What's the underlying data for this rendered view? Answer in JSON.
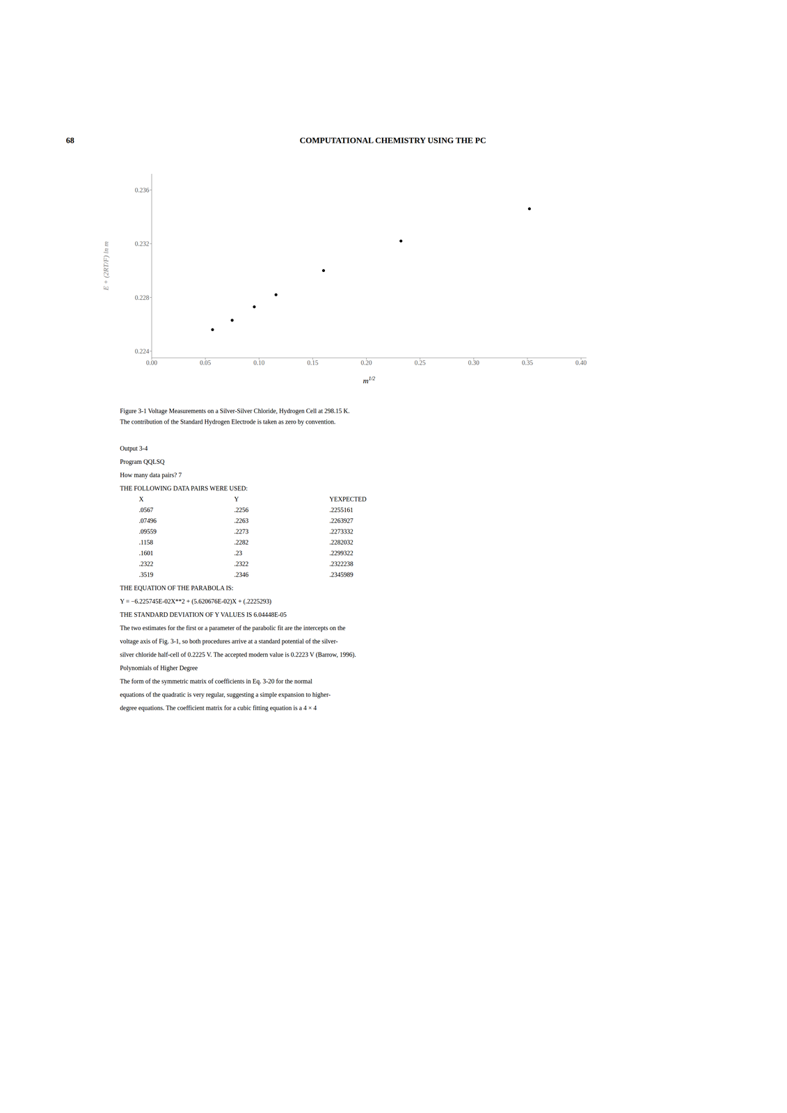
{
  "chart_data": {
    "type": "scatter",
    "title": "Figure 3-1 Voltage Measurements on a Silver-Silver Chloride, Hydrogen Cell at 298.15 K.",
    "subtitle": "The contribution of the Standard Hydrogen Electrode is taken as zero by convention.",
    "xlabel": "m1/2",
    "ylabel": "E + (2RT/F) ln m",
    "x": [
      0.0567,
      0.07496,
      0.09559,
      0.1158,
      0.1601,
      0.2322,
      0.3519
    ],
    "values": [
      0.2256,
      0.2263,
      0.2273,
      0.2282,
      0.23,
      0.2322,
      0.2346
    ],
    "color": "#000000",
    "marker": "circle",
    "xlim": [
      0.0,
      0.405
    ],
    "ylim": [
      0.2235,
      0.2372
    ],
    "xticks": [
      {
        "value": 0.0,
        "label": "0.00"
      },
      0.05,
      {
        "value": 0.1,
        "label": "0.10"
      },
      0.15,
      {
        "value": 0.2,
        "label": "0.20"
      },
      0.25,
      {
        "value": 0.3,
        "label": "0.30"
      },
      0.35,
      {
        "value": 0.4,
        "label": "0.40"
      }
    ],
    "yticks": [
      0.224,
      0.228,
      0.232,
      0.236
    ],
    "grid": false,
    "annotations": [
      "68",
      "COMPUTATIONAL CHEMISTRY USING THE PC",
      "Output 3-4",
      "Program QQLSQ",
      "How many data pairs? 7",
      "THE FOLLOWING DATA PAIRS WERE USED:",
      [
        "X",
        "Y",
        "YEXPECTED"
      ],
      [
        ".0567",
        ".2256",
        ".2255161"
      ],
      [
        ".07496",
        ".2263",
        ".2263927"
      ],
      [
        ".09559",
        ".2273",
        ".2273332"
      ],
      [
        ".1158",
        ".2282",
        ".2282032"
      ],
      [
        ".1601",
        ".23",
        ".2299322"
      ],
      [
        ".2322",
        ".2322",
        ".2322238"
      ],
      [
        ".3519",
        ".2346",
        ".2345989"
      ],
      "THE EQUATION OF THE PARABOLA IS:",
      "Y = −6.225745E-02X**2 + (5.620676E-02)X + (.2225293)",
      "THE STANDARD DEVIATION OF Y VALUES IS 6.04448E-05",
      "The two estimates for the first or a parameter of the parabolic fit are the intercepts on the",
      "voltage axis of Fig. 3-1, so both procedures arrive at a standard potential of the silver-",
      "silver chloride half-cell of 0.2225 V. The accepted modern value is 0.2223 V (Barrow, 1996).",
      "Polynomials of Higher Degree",
      "The form of the symmetric matrix of coefficients in Eq. 3-20 for the normal",
      "equations of the quadratic is very regular, suggesting a simple expansion to higher-",
      "degree equations. The coefficient matrix for a cubic fitting equation is a 4 × 4"
    ]
  }
}
